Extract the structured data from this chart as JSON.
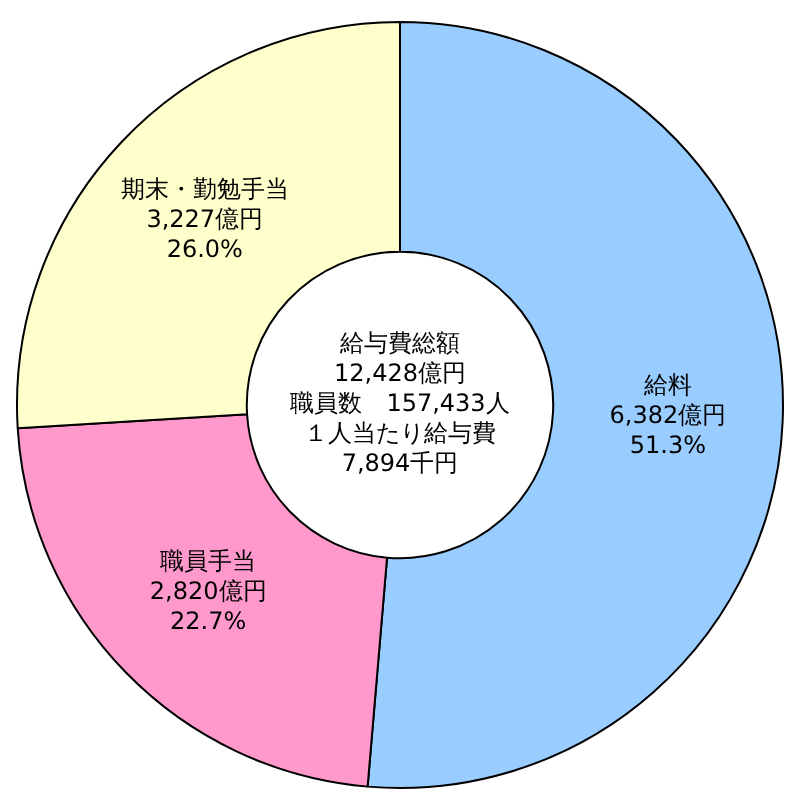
{
  "chart_data": {
    "type": "donut",
    "categories": [
      "給料",
      "職員手当",
      "期末・勤勉手当"
    ],
    "values": [
      6382,
      2820,
      3227
    ],
    "colors": [
      "#99ccff",
      "#ff99cc",
      "#ffffcc"
    ],
    "value_labels": [
      "6,382億円\n51.3%",
      "2,820億円\n22.7%",
      "3,227億円\n26.0%"
    ],
    "annotations": [
      "給与費総額",
      "12,428億円",
      "職員数　157,433人",
      "１人当たり給与費",
      "7,894千円"
    ],
    "legend": false
  }
}
